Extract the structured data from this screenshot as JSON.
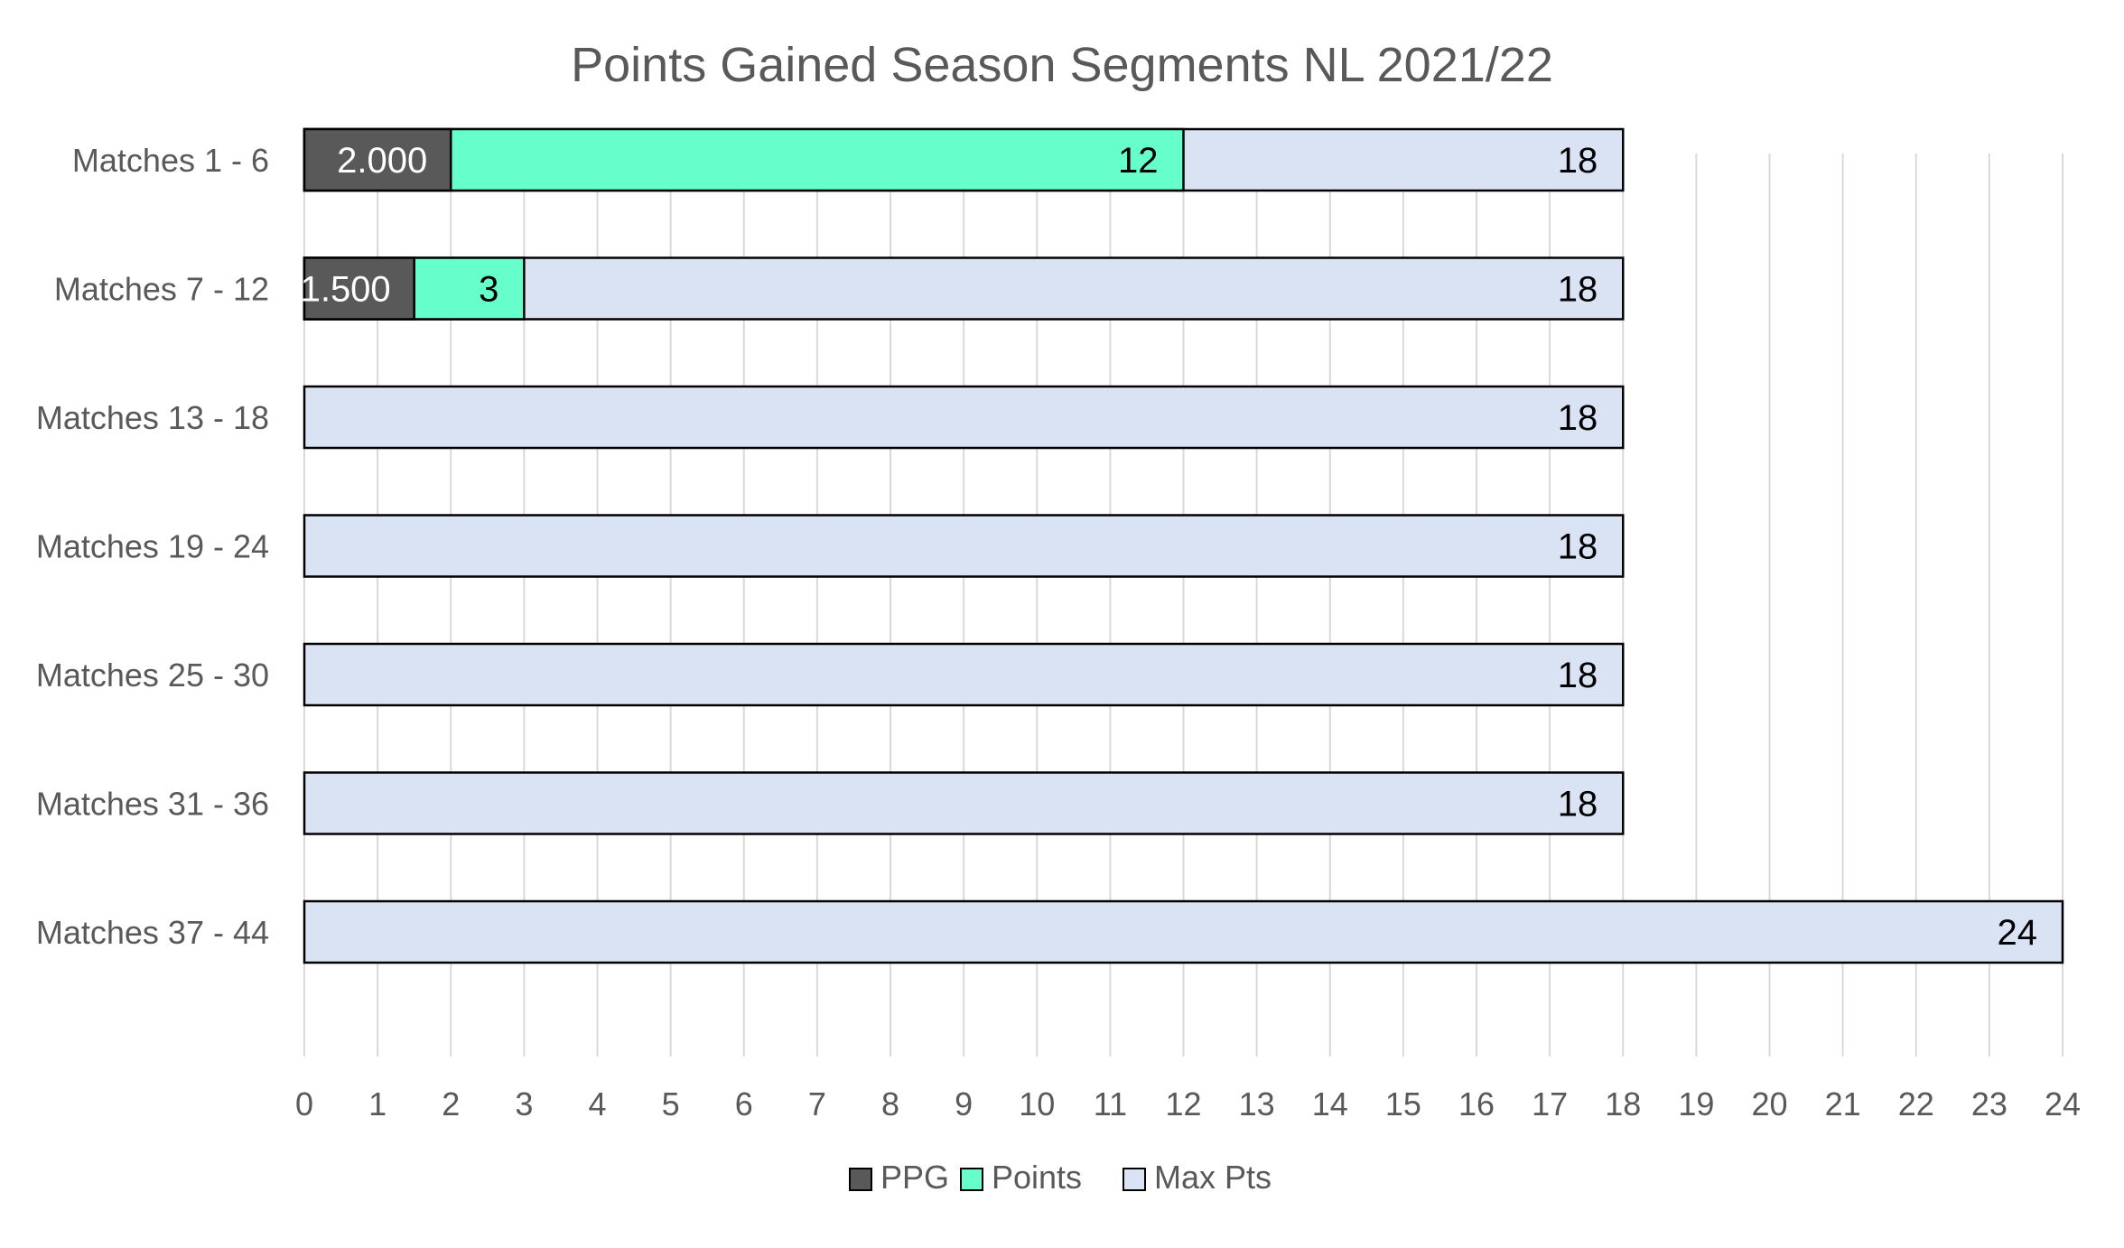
{
  "chart_data": {
    "type": "bar",
    "orientation": "horizontal",
    "title": "Points Gained Season Segments NL 2021/22",
    "xlabel": "",
    "ylabel": "",
    "categories": [
      "Matches 1 - 6",
      "Matches 7 - 12",
      "Matches 13 - 18",
      "Matches 19 - 24",
      "Matches 25 - 30",
      "Matches 31 - 36",
      "Matches 37 - 44"
    ],
    "series": [
      {
        "name": "PPG",
        "values": [
          2.0,
          1.5,
          null,
          null,
          null,
          null,
          null
        ],
        "labels": [
          "2.000",
          "1.500",
          "",
          "",
          "",
          "",
          ""
        ]
      },
      {
        "name": "Points",
        "values": [
          12,
          3,
          null,
          null,
          null,
          null,
          null
        ],
        "labels": [
          "12",
          "3",
          "",
          "",
          "",
          "",
          ""
        ]
      },
      {
        "name": "Max Pts",
        "values": [
          18,
          18,
          18,
          18,
          18,
          18,
          24
        ],
        "labels": [
          "18",
          "18",
          "18",
          "18",
          "18",
          "18",
          "24"
        ]
      }
    ],
    "xlim": [
      0,
      24
    ],
    "xticks": [
      "0",
      "1",
      "2",
      "3",
      "4",
      "5",
      "6",
      "7",
      "8",
      "9",
      "10",
      "11",
      "12",
      "13",
      "14",
      "15",
      "16",
      "17",
      "18",
      "19",
      "20",
      "21",
      "22",
      "23",
      "24"
    ],
    "grid": true,
    "legend_position": "bottom",
    "colors": {
      "PPG": "#595959",
      "Points": "#66ffcc",
      "Max Pts": "#dae3f3",
      "grid": "#d9d9d9",
      "text": "#595959",
      "bar_outline": "#000000"
    }
  }
}
